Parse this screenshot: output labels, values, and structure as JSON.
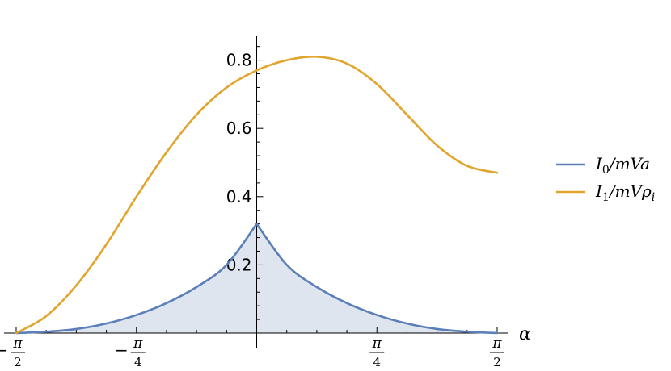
{
  "chart_data": {
    "type": "line",
    "xlabel": "α",
    "ylabel": "",
    "xlim": [
      -1.5708,
      1.5708
    ],
    "ylim": [
      0,
      0.85
    ],
    "x_ticks": [
      {
        "value": -1.5708,
        "sign": "−",
        "num": "π",
        "den": "2"
      },
      {
        "value": -0.7854,
        "sign": "−",
        "num": "π",
        "den": "4"
      },
      {
        "value": 0.7854,
        "sign": "",
        "num": "π",
        "den": "4"
      },
      {
        "value": 1.5708,
        "sign": "",
        "num": "π",
        "den": "2"
      }
    ],
    "y_ticks": [
      {
        "value": 0.2,
        "label": "0.2"
      },
      {
        "value": 0.4,
        "label": "0.4"
      },
      {
        "value": 0.6,
        "label": "0.6"
      },
      {
        "value": 0.8,
        "label": "0.8"
      }
    ],
    "legend_position": "right",
    "series": [
      {
        "name_main": "I",
        "name_sub": "0",
        "name_rest": "/mVa",
        "color": "#5b7fb8",
        "filled": true,
        "fill_color": "#dfe5ef",
        "x": [
          -1.5708,
          -1.3744,
          -1.1781,
          -0.9817,
          -0.7854,
          -0.589,
          -0.3927,
          -0.1963,
          0,
          0.1963,
          0.3927,
          0.589,
          0.7854,
          0.9817,
          1.1781,
          1.3744,
          1.5708
        ],
        "values": [
          0.0,
          0.004,
          0.012,
          0.028,
          0.053,
          0.088,
          0.135,
          0.2,
          0.32,
          0.2,
          0.135,
          0.088,
          0.053,
          0.028,
          0.012,
          0.004,
          0.0
        ]
      },
      {
        "name_main": "I",
        "name_sub": "1",
        "name_rest": "/mVρ",
        "name_sub2": "i",
        "color": "#e1a42c",
        "filled": false,
        "x": [
          -1.5708,
          -1.3744,
          -1.1781,
          -0.9817,
          -0.7854,
          -0.589,
          -0.3927,
          -0.1963,
          0,
          0.1963,
          0.3927,
          0.589,
          0.7854,
          0.9817,
          1.1781,
          1.3744,
          1.5708
        ],
        "values": [
          0.0,
          0.05,
          0.14,
          0.26,
          0.4,
          0.53,
          0.64,
          0.72,
          0.77,
          0.8,
          0.81,
          0.79,
          0.73,
          0.64,
          0.55,
          0.49,
          0.47
        ]
      }
    ]
  }
}
